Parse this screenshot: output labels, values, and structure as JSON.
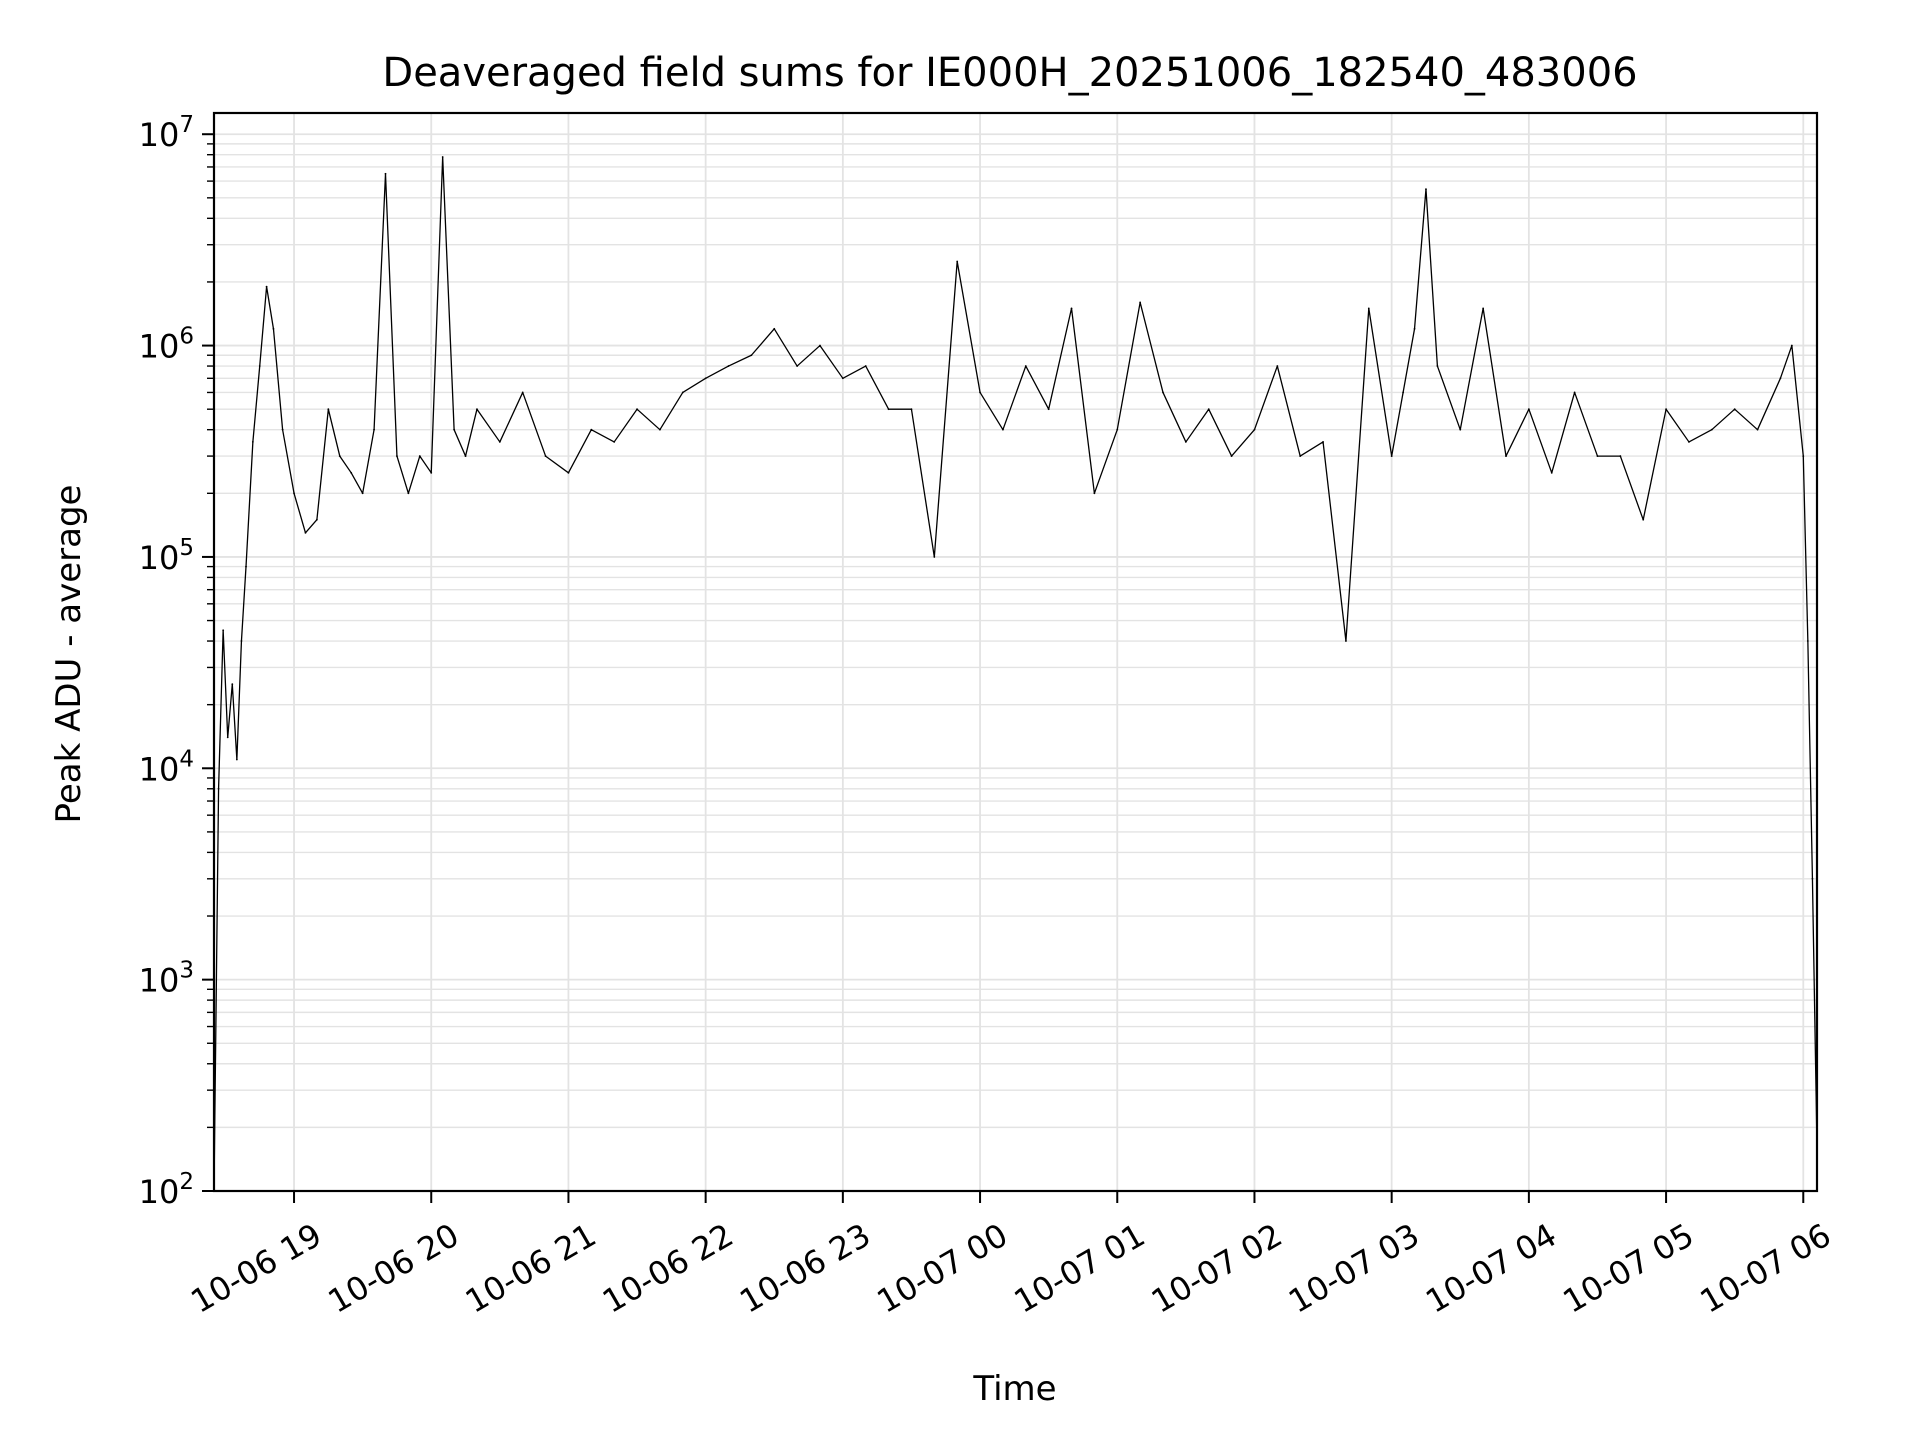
{
  "chart_data": {
    "type": "line",
    "title": "Deaveraged field sums for IE000H_20251006_182540_483006",
    "xlabel": "Time",
    "ylabel": "Peak ADU - average",
    "yscale": "log",
    "ylim": [
      100,
      12600000
    ],
    "xlim": [
      "2025-10-06 18:25",
      "2025-10-07 06:06"
    ],
    "grid": "on",
    "x_ticks": [
      "10-06 19",
      "10-06 20",
      "10-06 21",
      "10-06 22",
      "10-06 23",
      "10-07 00",
      "10-07 01",
      "10-07 02",
      "10-07 03",
      "10-07 04",
      "10-07 05",
      "10-07 06"
    ],
    "y_ticks": [
      "10^2",
      "10^3",
      "10^4",
      "10^5",
      "10^6",
      "10^7"
    ],
    "series": [
      {
        "color": "#000000",
        "x": [
          "2025-10-06 18:25",
          "2025-10-06 18:27",
          "2025-10-06 18:29",
          "2025-10-06 18:31",
          "2025-10-06 18:33",
          "2025-10-06 18:35",
          "2025-10-06 18:37",
          "2025-10-06 18:39",
          "2025-10-06 18:42",
          "2025-10-06 18:45",
          "2025-10-06 18:48",
          "2025-10-06 18:51",
          "2025-10-06 18:55",
          "2025-10-06 19:00",
          "2025-10-06 19:05",
          "2025-10-06 19:10",
          "2025-10-06 19:15",
          "2025-10-06 19:20",
          "2025-10-06 19:25",
          "2025-10-06 19:30",
          "2025-10-06 19:35",
          "2025-10-06 19:40",
          "2025-10-06 19:45",
          "2025-10-06 19:50",
          "2025-10-06 19:55",
          "2025-10-06 20:00",
          "2025-10-06 20:05",
          "2025-10-06 20:10",
          "2025-10-06 20:15",
          "2025-10-06 20:20",
          "2025-10-06 20:30",
          "2025-10-06 20:40",
          "2025-10-06 20:50",
          "2025-10-06 21:00",
          "2025-10-06 21:10",
          "2025-10-06 21:20",
          "2025-10-06 21:30",
          "2025-10-06 21:40",
          "2025-10-06 21:50",
          "2025-10-06 22:00",
          "2025-10-06 22:10",
          "2025-10-06 22:20",
          "2025-10-06 22:30",
          "2025-10-06 22:40",
          "2025-10-06 22:50",
          "2025-10-06 23:00",
          "2025-10-06 23:10",
          "2025-10-06 23:20",
          "2025-10-06 23:30",
          "2025-10-06 23:40",
          "2025-10-06 23:50",
          "2025-10-07 00:00",
          "2025-10-07 00:10",
          "2025-10-07 00:20",
          "2025-10-07 00:30",
          "2025-10-07 00:40",
          "2025-10-07 00:50",
          "2025-10-07 01:00",
          "2025-10-07 01:10",
          "2025-10-07 01:20",
          "2025-10-07 01:30",
          "2025-10-07 01:40",
          "2025-10-07 01:50",
          "2025-10-07 02:00",
          "2025-10-07 02:10",
          "2025-10-07 02:20",
          "2025-10-07 02:30",
          "2025-10-07 02:40",
          "2025-10-07 02:50",
          "2025-10-07 03:00",
          "2025-10-07 03:05",
          "2025-10-07 03:10",
          "2025-10-07 03:15",
          "2025-10-07 03:20",
          "2025-10-07 03:30",
          "2025-10-07 03:40",
          "2025-10-07 03:50",
          "2025-10-07 04:00",
          "2025-10-07 04:10",
          "2025-10-07 04:20",
          "2025-10-07 04:30",
          "2025-10-07 04:40",
          "2025-10-07 04:50",
          "2025-10-07 05:00",
          "2025-10-07 05:10",
          "2025-10-07 05:20",
          "2025-10-07 05:30",
          "2025-10-07 05:40",
          "2025-10-07 05:50",
          "2025-10-07 05:55",
          "2025-10-07 06:00",
          "2025-10-07 06:02",
          "2025-10-07 06:04",
          "2025-10-07 06:06"
        ],
        "y": [
          100,
          8000,
          45000,
          14000,
          25000,
          11000,
          40000,
          90000,
          350000,
          800000,
          1900000,
          1200000,
          400000,
          200000,
          130000,
          150000,
          500000,
          300000,
          250000,
          200000,
          400000,
          6500000,
          300000,
          200000,
          300000,
          250000,
          7800000,
          400000,
          300000,
          500000,
          350000,
          600000,
          300000,
          250000,
          400000,
          350000,
          500000,
          400000,
          600000,
          700000,
          800000,
          900000,
          1200000,
          800000,
          1000000,
          700000,
          800000,
          500000,
          500000,
          100000,
          2500000,
          600000,
          400000,
          800000,
          500000,
          1500000,
          200000,
          400000,
          1600000,
          600000,
          350000,
          500000,
          300000,
          400000,
          800000,
          300000,
          350000,
          40000,
          1500000,
          300000,
          600000,
          1200000,
          5500000,
          800000,
          400000,
          1500000,
          300000,
          500000,
          250000,
          600000,
          300000,
          300000,
          150000,
          500000,
          350000,
          400000,
          500000,
          400000,
          700000,
          1000000,
          300000,
          40000,
          3000,
          160
        ]
      }
    ]
  }
}
